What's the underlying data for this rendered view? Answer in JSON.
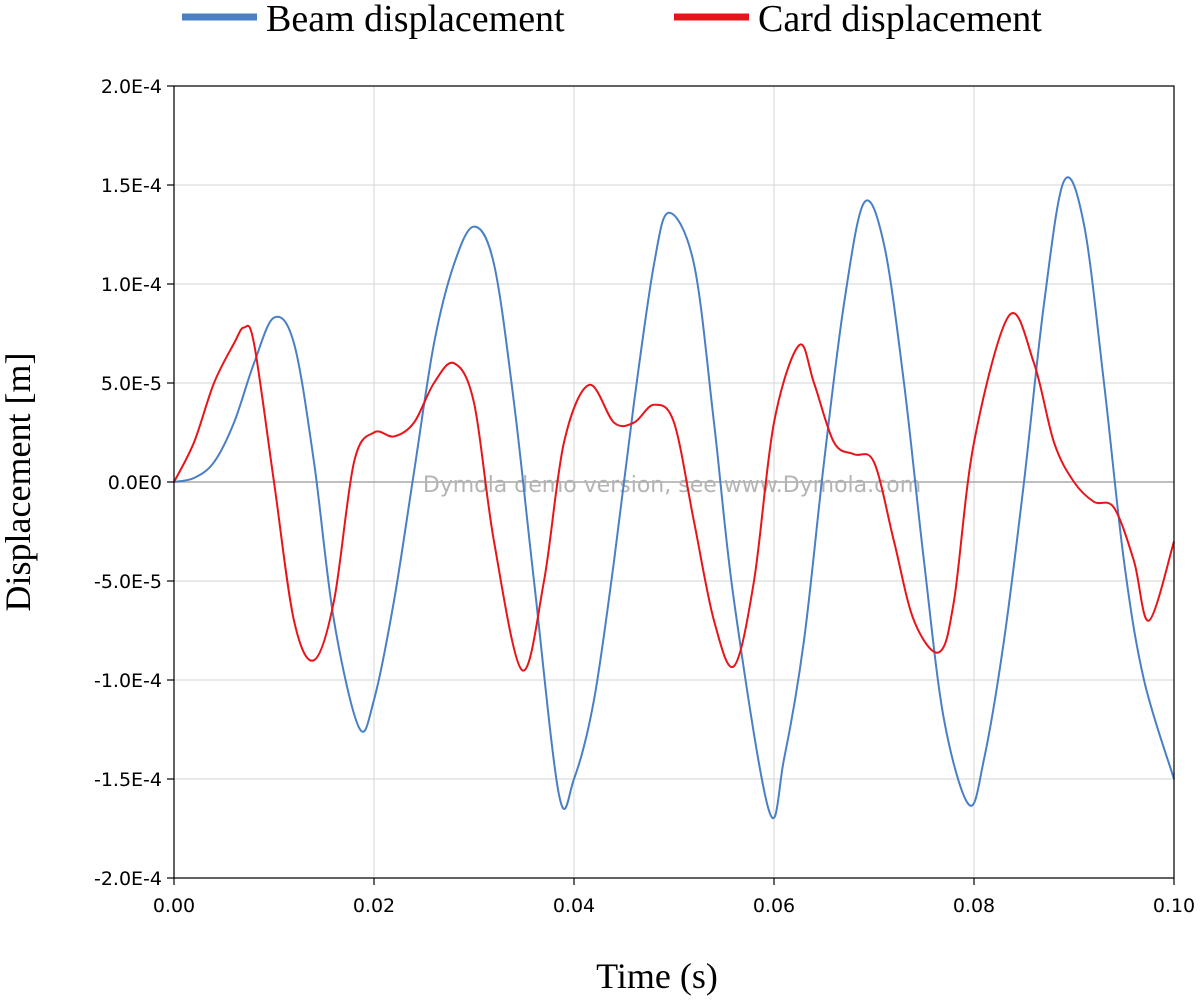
{
  "chart_data": {
    "type": "line",
    "xlabel": "Time (s)",
    "ylabel": "Displacement [m]",
    "xlim": [
      0,
      0.1
    ],
    "ylim": [
      -0.0002,
      0.0002
    ],
    "x_ticks": [
      "0.00",
      "0.02",
      "0.04",
      "0.06",
      "0.08",
      "0.10"
    ],
    "y_ticks": [
      "2.0E-4",
      "1.5E-4",
      "1.0E-4",
      "5.0E-5",
      "0.0E0",
      "-5.0E-5",
      "-1.0E-4",
      "-1.5E-4",
      "-2.0E-4"
    ],
    "grid": true,
    "legend_position": "top",
    "watermark": "Dymola demo version, see www.Dymola.com",
    "series": [
      {
        "name": "Beam displacement",
        "color": "#4a7fc4",
        "x": [
          0,
          0.002,
          0.004,
          0.006,
          0.008,
          0.01,
          0.012,
          0.014,
          0.016,
          0.0185,
          0.02,
          0.022,
          0.024,
          0.026,
          0.028,
          0.03,
          0.032,
          0.034,
          0.036,
          0.0385,
          0.04,
          0.042,
          0.044,
          0.046,
          0.048,
          0.0495,
          0.052,
          0.054,
          0.056,
          0.0595,
          0.061,
          0.063,
          0.065,
          0.067,
          0.069,
          0.071,
          0.073,
          0.075,
          0.077,
          0.0795,
          0.081,
          0.083,
          0.085,
          0.087,
          0.089,
          0.091,
          0.093,
          0.095,
          0.097,
          0.1
        ],
        "y": [
          0,
          2e-06,
          1e-05,
          3e-05,
          6e-05,
          8.3e-05,
          7e-05,
          1e-05,
          -7e-05,
          -0.000124,
          -0.00011,
          -6e-05,
          5e-06,
          7e-05,
          0.00011,
          0.000129,
          0.00011,
          4e-05,
          -5e-05,
          -0.000158,
          -0.00015,
          -0.00011,
          -4e-05,
          4e-05,
          0.00011,
          0.000136,
          0.00011,
          3e-05,
          -6e-05,
          -0.000166,
          -0.00014,
          -8e-05,
          1e-05,
          9e-05,
          0.000141,
          0.00012,
          5e-05,
          -4e-05,
          -0.00012,
          -0.000163,
          -0.00014,
          -8e-05,
          0.0,
          9e-05,
          0.000152,
          0.00013,
          5e-05,
          -4e-05,
          -0.0001,
          -0.00015
        ]
      },
      {
        "name": "Card displacement",
        "color": "#e8141a",
        "x": [
          0,
          0.002,
          0.004,
          0.006,
          0.007,
          0.008,
          0.01,
          0.012,
          0.014,
          0.016,
          0.018,
          0.02,
          0.022,
          0.024,
          0.026,
          0.028,
          0.03,
          0.032,
          0.0348,
          0.037,
          0.039,
          0.0415,
          0.044,
          0.046,
          0.048,
          0.05,
          0.052,
          0.054,
          0.056,
          0.058,
          0.06,
          0.0625,
          0.064,
          0.066,
          0.068,
          0.07,
          0.072,
          0.074,
          0.0765,
          0.078,
          0.08,
          0.0835,
          0.086,
          0.088,
          0.09,
          0.092,
          0.094,
          0.096,
          0.0975,
          0.1
        ],
        "y": [
          0,
          2e-05,
          5e-05,
          7e-05,
          7.8e-05,
          7e-05,
          0.0,
          -7e-05,
          -9e-05,
          -6e-05,
          1e-05,
          2.5e-05,
          2.3e-05,
          3e-05,
          5e-05,
          6e-05,
          4e-05,
          -3e-05,
          -9.5e-05,
          -5e-05,
          2e-05,
          4.9e-05,
          3e-05,
          3e-05,
          3.9e-05,
          3e-05,
          -2e-05,
          -7e-05,
          -9.3e-05,
          -5e-05,
          3e-05,
          6.9e-05,
          5e-05,
          2e-05,
          1.4e-05,
          1e-05,
          -3e-05,
          -7e-05,
          -8.6e-05,
          -6e-05,
          2e-05,
          8.4e-05,
          6e-05,
          2e-05,
          0.0,
          -1e-05,
          -1.3e-05,
          -4e-05,
          -7e-05,
          -3e-05
        ]
      }
    ]
  }
}
